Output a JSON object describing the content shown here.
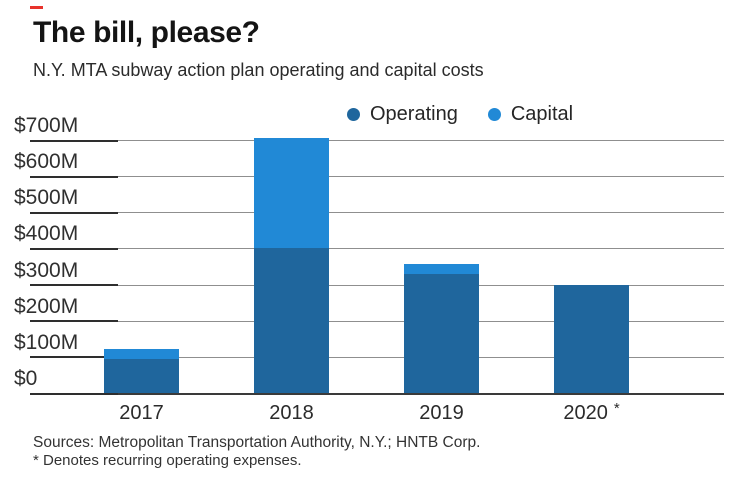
{
  "accent_color": "#E8332C",
  "header": {
    "title": "The bill, please?",
    "subtitle": "N.Y. MTA subway action plan operating and capital costs"
  },
  "legend": {
    "items": [
      {
        "label": "Operating",
        "color": "#1F669D"
      },
      {
        "label": "Capital",
        "color": "#2189D6"
      }
    ]
  },
  "chart_data": {
    "type": "bar",
    "stacked": true,
    "title": "The bill, please?",
    "subtitle": "N.Y. MTA subway action plan operating and capital costs",
    "unit": "$M",
    "categories": [
      "2017",
      "2018",
      "2019",
      "2020 *"
    ],
    "x_tick_labels": [
      {
        "label": "2017",
        "suffix": ""
      },
      {
        "label": "2018",
        "suffix": ""
      },
      {
        "label": "2019",
        "suffix": ""
      },
      {
        "label": "2020",
        "suffix": "*"
      }
    ],
    "series": [
      {
        "name": "Operating",
        "color": "#1F669D",
        "values": [
          95,
          400,
          330,
          300
        ]
      },
      {
        "name": "Capital",
        "color": "#2189D6",
        "values": [
          28,
          305,
          28,
          0
        ]
      }
    ],
    "totals": [
      123,
      705,
      358,
      300
    ],
    "ylim": [
      0,
      700
    ],
    "y_ticks": [
      {
        "value": 700,
        "label": "$700M"
      },
      {
        "value": 600,
        "label": "$600M"
      },
      {
        "value": 500,
        "label": "$500M"
      },
      {
        "value": 400,
        "label": "$400M"
      },
      {
        "value": 300,
        "label": "$300M"
      },
      {
        "value": 200,
        "label": "$200M"
      },
      {
        "value": 100,
        "label": "$100M"
      },
      {
        "value": 0,
        "label": "$0"
      }
    ],
    "grid": true,
    "legend_position": "top"
  },
  "footer": {
    "sources": "Sources: Metropolitan Transportation Authority, N.Y.; HNTB Corp.",
    "footnote": "* Denotes recurring operating expenses."
  }
}
